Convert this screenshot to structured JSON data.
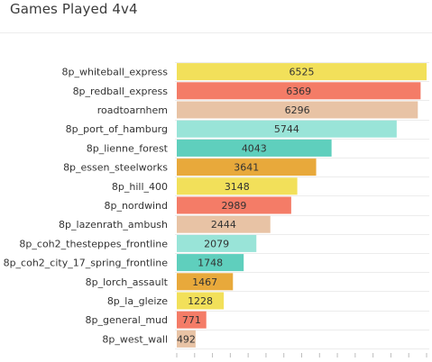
{
  "chart_data": {
    "type": "bar",
    "orientation": "horizontal",
    "title": "Games Played 4v4",
    "xlabel": "",
    "ylabel": "",
    "xlim": [
      0,
      6525
    ],
    "grid": "horizontal",
    "categories": [
      "8p_whiteball_express",
      "8p_redball_express",
      "roadtoarnhem",
      "8p_port_of_hamburg",
      "8p_lienne_forest",
      "8p_essen_steelworks",
      "8p_hill_400",
      "8p_nordwind",
      "8p_lazenrath_ambush",
      "8p_coh2_thesteppes_frontline",
      "8p_coh2_city_17_spring_frontline",
      "8p_lorch_assault",
      "8p_la_gleize",
      "8p_general_mud",
      "8p_west_wall"
    ],
    "values": [
      6525,
      6369,
      6296,
      5744,
      4043,
      3641,
      3148,
      2989,
      2444,
      2079,
      1748,
      1467,
      1228,
      771,
      492
    ],
    "data_labels": [
      "6525",
      "6369",
      "6296",
      "5744",
      "4043",
      "3641",
      "3148",
      "2989",
      "2444",
      "2079",
      "1748",
      "1467",
      "1228",
      "771",
      "492"
    ],
    "colors": [
      "#f2e05a",
      "#f47c67",
      "#e8c3a5",
      "#99e4d8",
      "#5fcfbd",
      "#e8a93b"
    ]
  }
}
